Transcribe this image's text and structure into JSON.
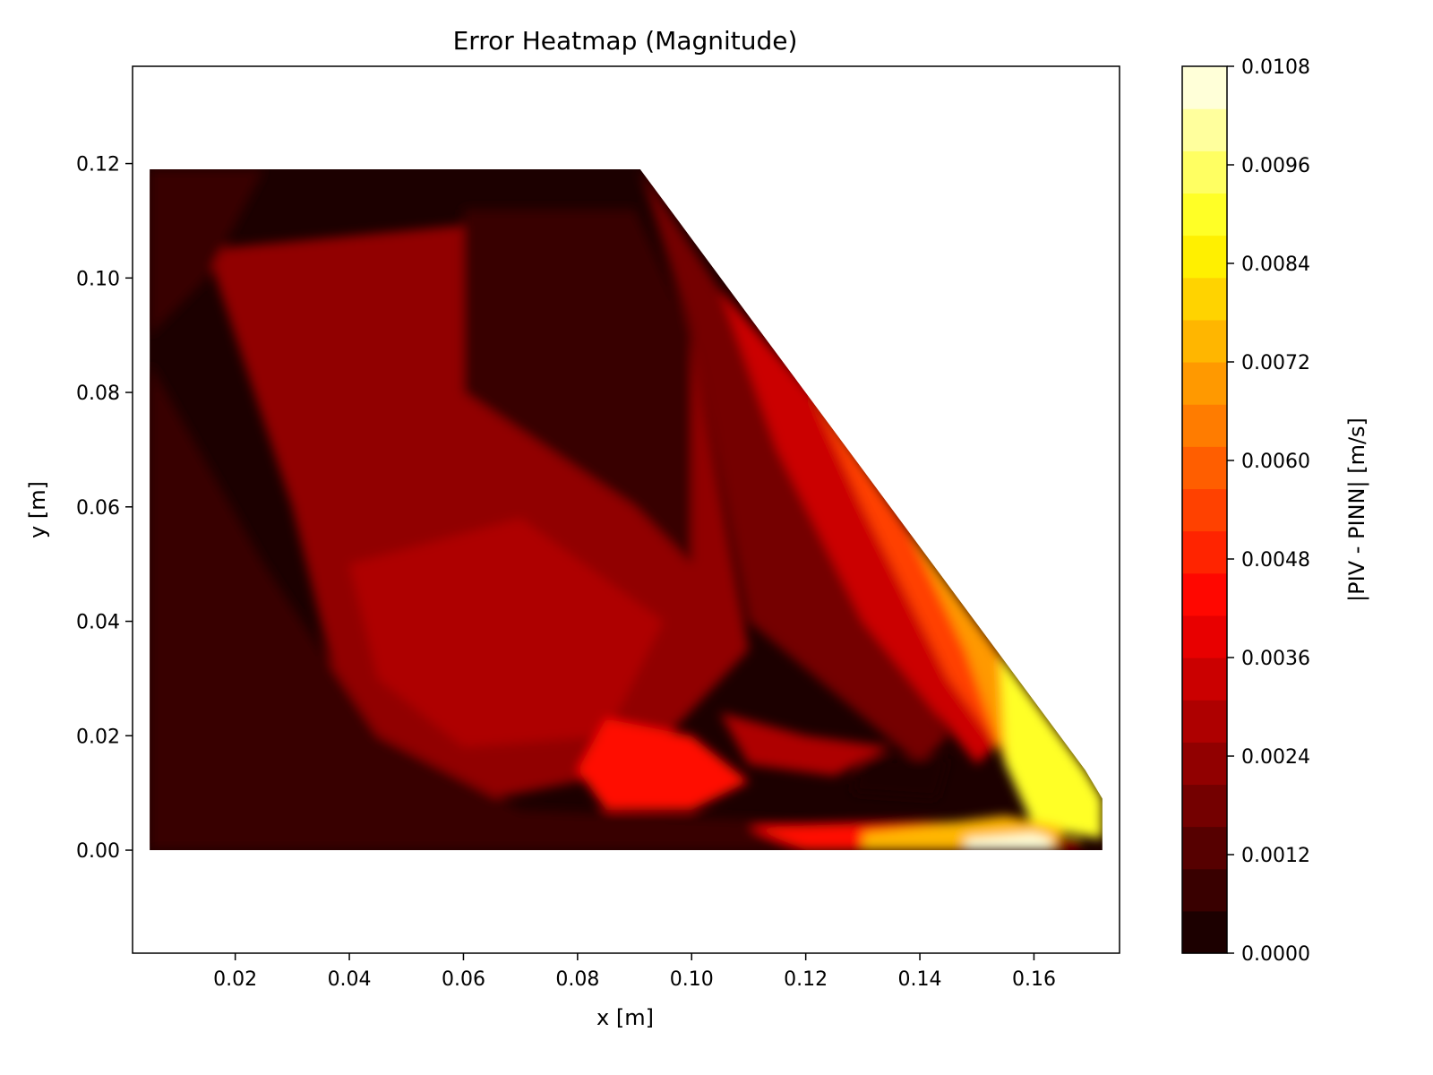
{
  "chart_data": {
    "type": "heatmap",
    "title": "Error Heatmap (Magnitude)",
    "xlabel": "x [m]",
    "ylabel": "y [m]",
    "xlim": [
      0.002,
      0.175
    ],
    "ylim": [
      -0.018,
      0.137
    ],
    "x_ticks": [
      "0.02",
      "0.04",
      "0.06",
      "0.08",
      "0.10",
      "0.12",
      "0.14",
      "0.16"
    ],
    "x_tick_values": [
      0.02,
      0.04,
      0.06,
      0.08,
      0.1,
      0.12,
      0.14,
      0.16
    ],
    "y_ticks": [
      "0.00",
      "0.02",
      "0.04",
      "0.06",
      "0.08",
      "0.10",
      "0.12"
    ],
    "y_tick_values": [
      0.0,
      0.02,
      0.04,
      0.06,
      0.08,
      0.1,
      0.12
    ],
    "colorbar": {
      "label": "|PIV - PINN| [m/s]",
      "range": [
        0.0,
        0.0108
      ],
      "colormap": "hot",
      "ticks": [
        "0.0000",
        "0.0012",
        "0.0024",
        "0.0036",
        "0.0048",
        "0.0060",
        "0.0072",
        "0.0084",
        "0.0096",
        "0.0108"
      ],
      "tick_values": [
        0.0,
        0.0012,
        0.0024,
        0.0036,
        0.0048,
        0.006,
        0.0072,
        0.0084,
        0.0096,
        0.0108
      ],
      "levels": [
        "#1c0000",
        "#390000",
        "#560000",
        "#740000",
        "#910000",
        "#ae0000",
        "#cb0000",
        "#e80000",
        "#ff0700",
        "#ff2400",
        "#ff4100",
        "#ff5e00",
        "#ff7c00",
        "#ff9900",
        "#ffb600",
        "#ffd300",
        "#fff000",
        "#ffff26",
        "#ffff62",
        "#ffff9d",
        "#ffffd8"
      ]
    },
    "domain_boundary": {
      "x": [
        0.005,
        0.091,
        0.169,
        0.172,
        0.172,
        0.005
      ],
      "y": [
        0.119,
        0.119,
        0.014,
        0.009,
        0.0,
        0.0
      ]
    },
    "regions": [
      {
        "value": 0.0022,
        "x": [
          0.015,
          0.09,
          0.1,
          0.11,
          0.09,
          0.06,
          0.04,
          0.03
        ],
        "y": [
          0.105,
          0.112,
          0.09,
          0.035,
          0.014,
          0.008,
          0.02,
          0.06
        ]
      },
      {
        "value": 0.0028,
        "x": [
          0.04,
          0.07,
          0.095,
          0.085,
          0.06,
          0.045
        ],
        "y": [
          0.05,
          0.058,
          0.04,
          0.02,
          0.018,
          0.03
        ]
      },
      {
        "value": 0.0006,
        "x": [
          0.005,
          0.025,
          0.045,
          0.07,
          0.12,
          0.16,
          0.13,
          0.06,
          0.005
        ],
        "y": [
          0.085,
          0.05,
          0.02,
          0.007,
          0.005,
          0.005,
          0.0,
          0.0,
          0.0
        ]
      },
      {
        "value": 0.0006,
        "x": [
          0.06,
          0.09,
          0.1,
          0.1,
          0.09,
          0.06
        ],
        "y": [
          0.112,
          0.112,
          0.09,
          0.05,
          0.06,
          0.08
        ]
      },
      {
        "value": 0.0006,
        "x": [
          0.005,
          0.025,
          0.015,
          0.005
        ],
        "y": [
          0.119,
          0.119,
          0.1,
          0.09
        ]
      },
      {
        "value": 0.0018,
        "x": [
          0.091,
          0.107,
          0.12,
          0.145,
          0.14,
          0.11,
          0.1
        ],
        "y": [
          0.119,
          0.095,
          0.065,
          0.02,
          0.015,
          0.04,
          0.09
        ]
      },
      {
        "value": 0.0035,
        "x": [
          0.105,
          0.121,
          0.14,
          0.155,
          0.15,
          0.13,
          0.115
        ],
        "y": [
          0.098,
          0.08,
          0.05,
          0.02,
          0.015,
          0.04,
          0.07
        ]
      },
      {
        "value": 0.0055,
        "x": [
          0.121,
          0.16,
          0.156,
          0.145,
          0.13
        ],
        "y": [
          0.08,
          0.025,
          0.015,
          0.03,
          0.06
        ]
      },
      {
        "value": 0.007,
        "x": [
          0.138,
          0.169,
          0.172,
          0.163,
          0.155,
          0.148
        ],
        "y": [
          0.056,
          0.014,
          0.009,
          0.008,
          0.015,
          0.035
        ]
      },
      {
        "value": 0.0088,
        "x": [
          0.154,
          0.169,
          0.172,
          0.172,
          0.16,
          0.155
        ],
        "y": [
          0.034,
          0.014,
          0.009,
          0.002,
          0.004,
          0.015
        ]
      },
      {
        "value": 0.0042,
        "x": [
          0.085,
          0.1,
          0.11,
          0.1,
          0.085,
          0.08
        ],
        "y": [
          0.023,
          0.02,
          0.012,
          0.007,
          0.007,
          0.014
        ]
      },
      {
        "value": 0.003,
        "x": [
          0.105,
          0.12,
          0.135,
          0.125,
          0.11
        ],
        "y": [
          0.024,
          0.02,
          0.018,
          0.013,
          0.015
        ]
      },
      {
        "value": 0.0002,
        "x": [
          0.13,
          0.145,
          0.143,
          0.128
        ],
        "y": [
          0.016,
          0.016,
          0.009,
          0.01
        ]
      },
      {
        "value": 0.0045,
        "x": [
          0.11,
          0.14,
          0.165,
          0.16,
          0.12
        ],
        "y": [
          0.004,
          0.005,
          0.004,
          0.0,
          0.0
        ]
      },
      {
        "value": 0.0075,
        "x": [
          0.13,
          0.155,
          0.165,
          0.165,
          0.13
        ],
        "y": [
          0.003,
          0.006,
          0.004,
          0.0,
          0.0
        ]
      },
      {
        "value": 0.0104,
        "x": [
          0.148,
          0.16,
          0.163,
          0.163,
          0.148
        ],
        "y": [
          0.002,
          0.003,
          0.002,
          0.0,
          0.0
        ]
      },
      {
        "value": 0.0025,
        "x": [
          0.164,
          0.168,
          0.168,
          0.164
        ],
        "y": [
          0.002,
          0.002,
          0.0,
          0.0
        ]
      }
    ]
  }
}
